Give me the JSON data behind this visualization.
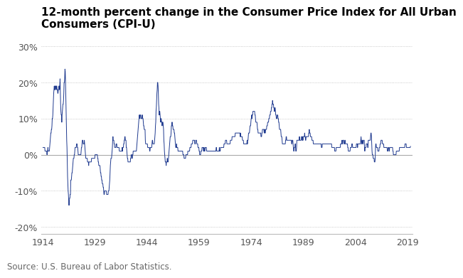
{
  "title_line1": "12-month percent change in the Consumer Price Index for All Urban",
  "title_line2": "Consumers (CPI-U)",
  "source_text": "Source: U.S. Bureau of Labor Statistics.",
  "line_color": "#1f3a8f",
  "background_color": "#ffffff",
  "zero_line_color": "#aaaaaa",
  "grid_color": "#bbbbbb",
  "ytick_labels": [
    "-20%",
    "-10%",
    "0%",
    "10%",
    "20%",
    "30%"
  ],
  "ytick_values": [
    -20,
    -10,
    0,
    10,
    20,
    30
  ],
  "xtick_values": [
    1914,
    1929,
    1944,
    1959,
    1974,
    1989,
    2004,
    2019
  ],
  "ylim": [
    -22,
    33
  ],
  "xlim": [
    1913.5,
    2020.5
  ],
  "title_fontsize": 11,
  "source_fontsize": 8.5,
  "tick_fontsize": 9
}
